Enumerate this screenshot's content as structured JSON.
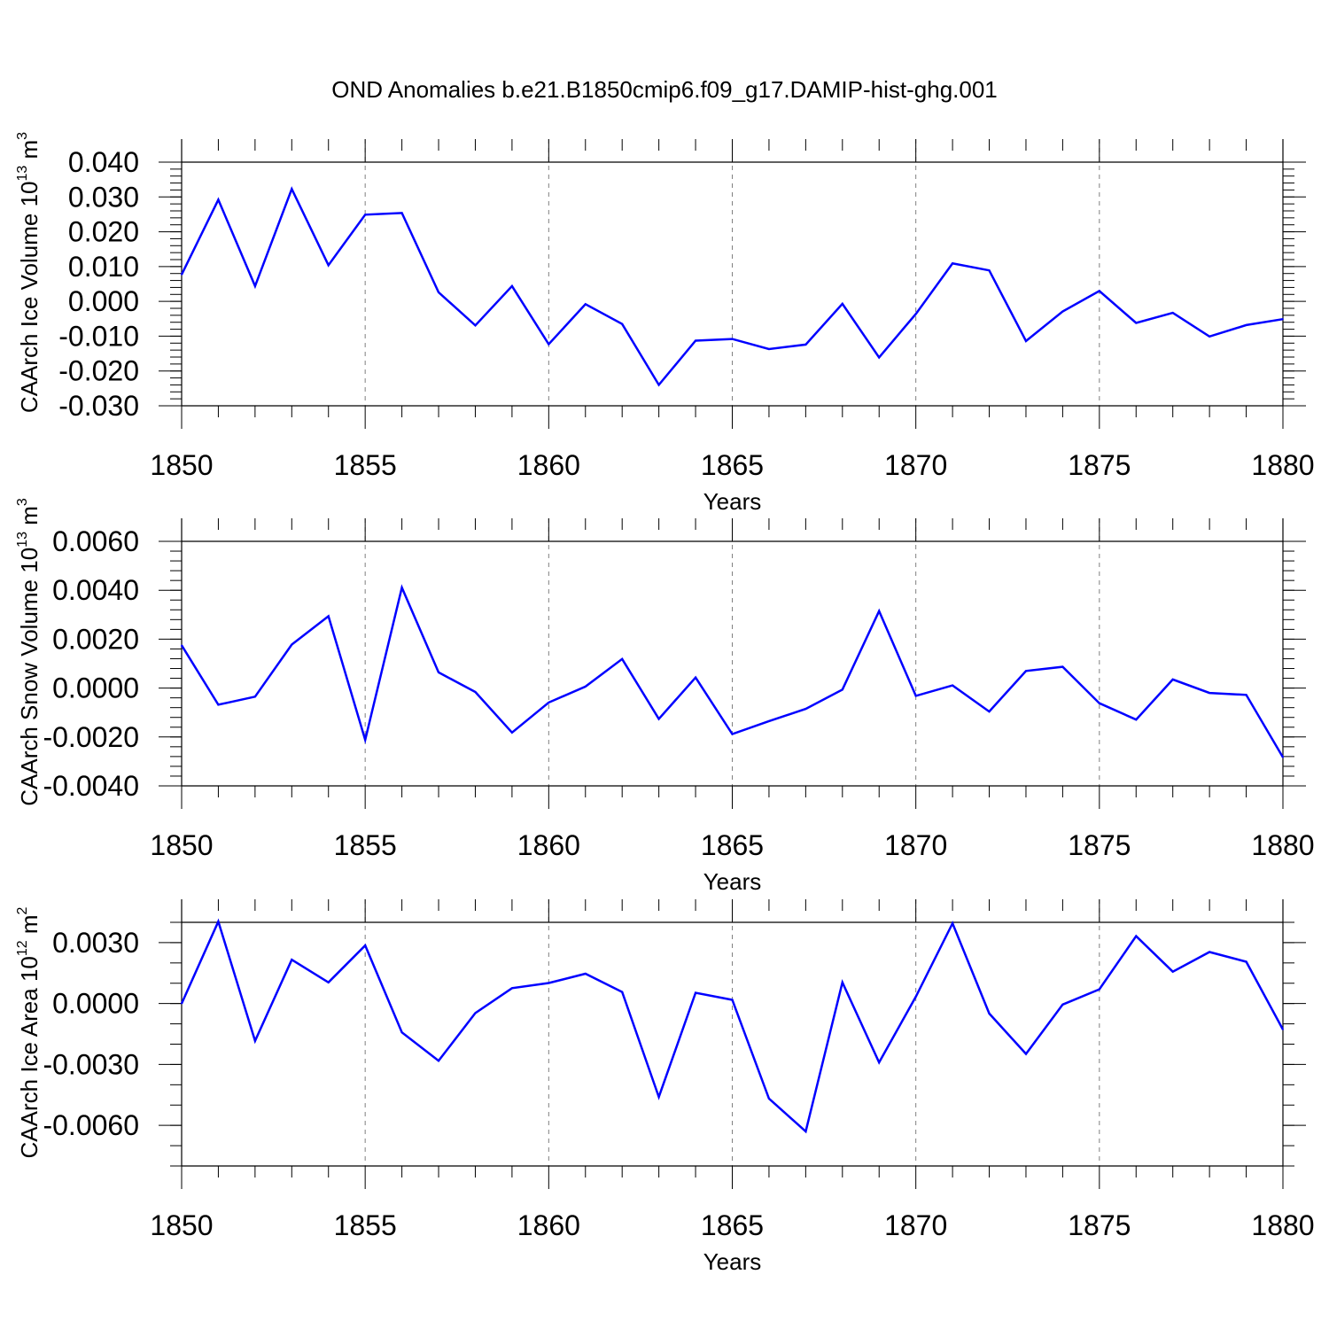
{
  "title": "OND Anomalies b.e21.B1850cmip6.f09_g17.DAMIP-hist-ghg.001",
  "colors": {
    "line": "#0000ff",
    "axis": "#000000",
    "grid": "#808080"
  },
  "chart_data": [
    {
      "type": "line",
      "ylabel": {
        "main": "CAArch Ice Volume 10",
        "exp": "13",
        "unit": " m",
        "unit_exp": "3"
      },
      "xlabel": "Years",
      "xlim": [
        1850,
        1880
      ],
      "ylim": [
        -0.03,
        0.04
      ],
      "xticks": [
        1850,
        1855,
        1860,
        1865,
        1870,
        1875,
        1880
      ],
      "yticks": [
        -0.03,
        -0.02,
        -0.01,
        0.0,
        0.01,
        0.02,
        0.03,
        0.04
      ],
      "ytick_labels": [
        "-0.030",
        "-0.020",
        "-0.010",
        "0.000",
        "0.010",
        "0.020",
        "0.030",
        "0.040"
      ],
      "grid": "vertical dashed at major x ticks",
      "x": [
        1850,
        1851,
        1852,
        1853,
        1854,
        1855,
        1856,
        1857,
        1858,
        1859,
        1860,
        1861,
        1862,
        1863,
        1864,
        1865,
        1866,
        1867,
        1868,
        1869,
        1870,
        1871,
        1872,
        1873,
        1874,
        1875,
        1876,
        1877,
        1878,
        1879,
        1880
      ],
      "values": [
        0.0077,
        0.0292,
        0.0044,
        0.0323,
        0.0104,
        0.0249,
        0.0254,
        0.0026,
        -0.0069,
        0.0044,
        -0.0123,
        -0.0008,
        -0.0065,
        -0.024,
        -0.0113,
        -0.0108,
        -0.0137,
        -0.0124,
        -0.0007,
        -0.0161,
        -0.0036,
        0.0109,
        0.0089,
        -0.0114,
        -0.0029,
        0.003,
        -0.0062,
        -0.0033,
        -0.0101,
        -0.0068,
        -0.0051
      ]
    },
    {
      "type": "line",
      "ylabel": {
        "main": "CAArch Snow Volume 10",
        "exp": "13",
        "unit": " m",
        "unit_exp": "3"
      },
      "xlabel": "Years",
      "xlim": [
        1850,
        1880
      ],
      "ylim": [
        -0.004,
        0.006
      ],
      "xticks": [
        1850,
        1855,
        1860,
        1865,
        1870,
        1875,
        1880
      ],
      "yticks": [
        -0.004,
        -0.002,
        0.0,
        0.002,
        0.004,
        0.006
      ],
      "ytick_labels": [
        "-0.0040",
        "-0.0020",
        "0.0000",
        "0.0020",
        "0.0040",
        "0.0060"
      ],
      "grid": "vertical dashed at major x ticks",
      "x": [
        1850,
        1851,
        1852,
        1853,
        1854,
        1855,
        1856,
        1857,
        1858,
        1859,
        1860,
        1861,
        1862,
        1863,
        1864,
        1865,
        1866,
        1867,
        1868,
        1869,
        1870,
        1871,
        1872,
        1873,
        1874,
        1875,
        1876,
        1877,
        1878,
        1879,
        1880
      ],
      "values": [
        0.00175,
        -0.00068,
        -0.00035,
        0.00178,
        0.00294,
        -0.00212,
        0.00411,
        0.00064,
        -0.00016,
        -0.00182,
        -0.00059,
        6e-05,
        0.00119,
        -0.00126,
        0.00043,
        -0.00188,
        -0.00135,
        -0.00085,
        -6e-05,
        0.00315,
        -0.00032,
        0.00011,
        -0.00096,
        0.0007,
        0.00087,
        -0.00062,
        -0.00129,
        0.00035,
        -0.0002,
        -0.00028,
        -0.00283
      ]
    },
    {
      "type": "line",
      "ylabel": {
        "main": "CAArch Ice Area 10",
        "exp": "12",
        "unit": " m",
        "unit_exp": "2"
      },
      "xlabel": "Years",
      "xlim": [
        1850,
        1880
      ],
      "ylim": [
        -0.008,
        0.004
      ],
      "xticks": [
        1850,
        1855,
        1860,
        1865,
        1870,
        1875,
        1880
      ],
      "yticks": [
        -0.006,
        -0.003,
        0.0,
        0.003
      ],
      "ytick_labels": [
        "-0.0060",
        "-0.0030",
        "0.0000",
        "0.0030"
      ],
      "grid": "vertical dashed at major x ticks",
      "x": [
        1850,
        1851,
        1852,
        1853,
        1854,
        1855,
        1856,
        1857,
        1858,
        1859,
        1860,
        1861,
        1862,
        1863,
        1864,
        1865,
        1866,
        1867,
        1868,
        1869,
        1870,
        1871,
        1872,
        1873,
        1874,
        1875,
        1876,
        1877,
        1878,
        1879,
        1880
      ],
      "values": [
        0.0,
        0.00404,
        -0.00184,
        0.00216,
        0.00104,
        0.00286,
        -0.00142,
        -0.00282,
        -0.00047,
        0.00076,
        0.00101,
        0.00147,
        0.00057,
        -0.0046,
        0.00053,
        0.00018,
        -0.00468,
        -0.0063,
        0.00104,
        -0.0029,
        0.00034,
        0.00395,
        -0.00049,
        -0.00248,
        -5e-05,
        0.0007,
        0.00332,
        0.00157,
        0.00254,
        0.00206,
        -0.00128
      ]
    }
  ]
}
